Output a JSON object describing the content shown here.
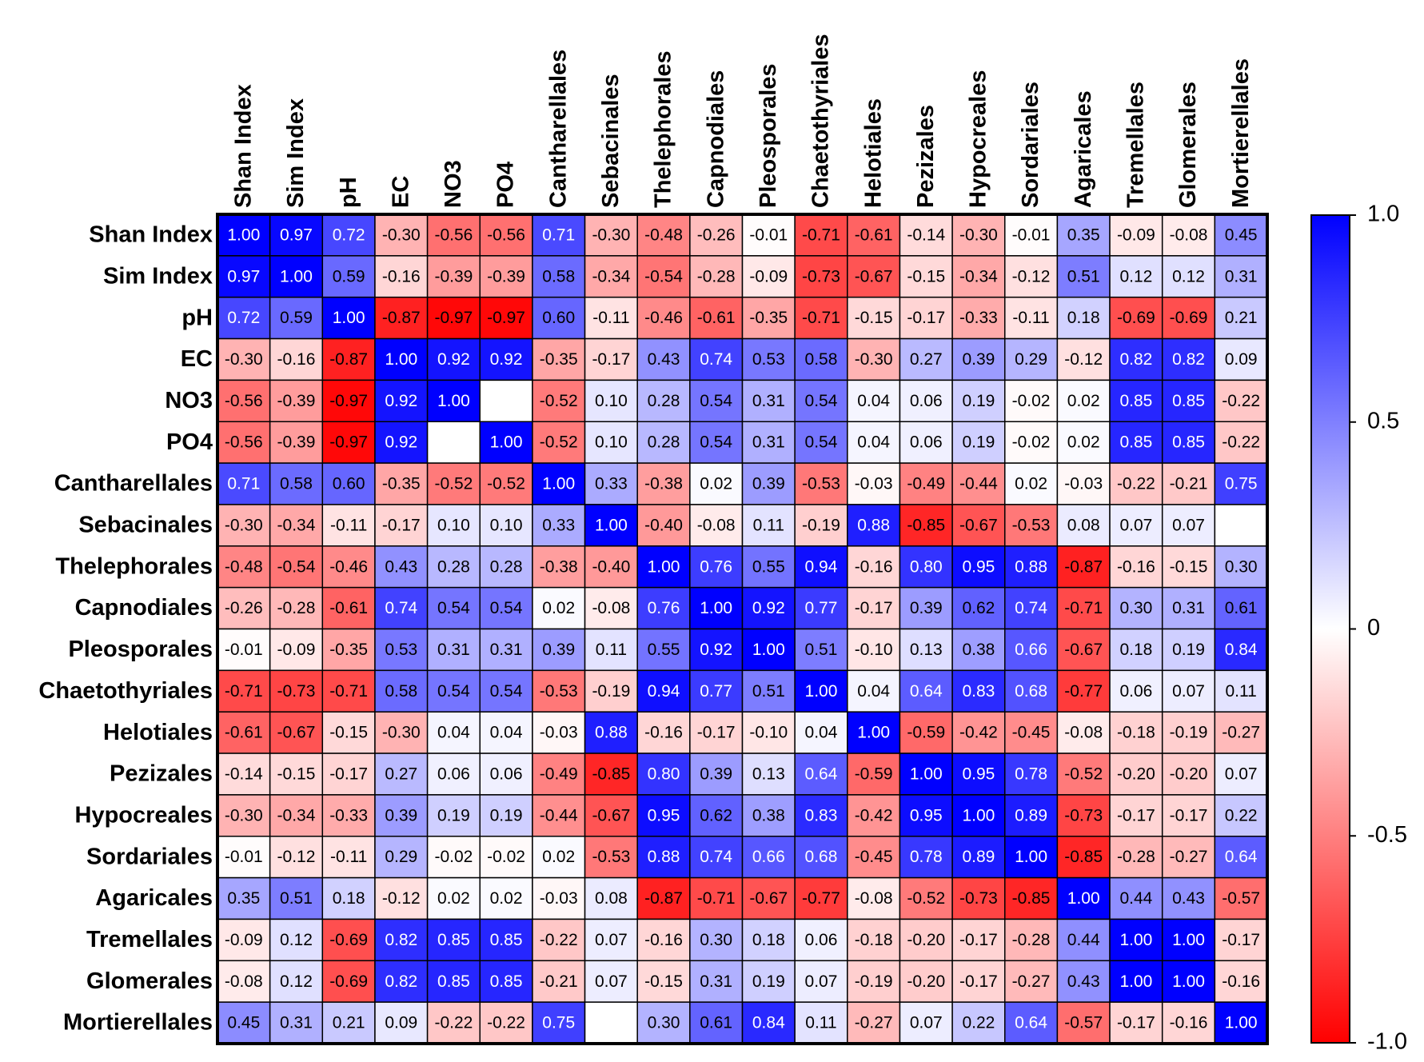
{
  "chart_data": {
    "type": "heatmap",
    "rows": [
      "Shan Index",
      "Sim Index",
      "pH",
      "EC",
      "NO3",
      "PO4",
      "Cantharellales",
      "Sebacinales",
      "Thelephorales",
      "Capnodiales",
      "Pleosporales",
      "Chaetothyriales",
      "Helotiales",
      "Pezizales",
      "Hypocreales",
      "Sordariales",
      "Agaricales",
      "Tremellales",
      "Glomerales",
      "Mortierellales"
    ],
    "columns": [
      "Shan Index",
      "Sim Index",
      "pH",
      "EC",
      "NO3",
      "PO4",
      "Cantharellales",
      "Sebacinales",
      "Thelephorales",
      "Capnodiales",
      "Pleosporales",
      "Chaetothyriales",
      "Helotiales",
      "Pezizales",
      "Hypocreales",
      "Sordariales",
      "Agaricales",
      "Tremellales",
      "Glomerales",
      "Mortierellales"
    ],
    "values": [
      [
        1.0,
        0.97,
        0.72,
        -0.3,
        -0.56,
        -0.56,
        0.71,
        -0.3,
        -0.48,
        -0.26,
        -0.01,
        -0.71,
        -0.61,
        -0.14,
        -0.3,
        -0.01,
        0.35,
        -0.09,
        -0.08,
        0.45
      ],
      [
        0.97,
        1.0,
        0.59,
        -0.16,
        -0.39,
        -0.39,
        0.58,
        -0.34,
        -0.54,
        -0.28,
        -0.09,
        -0.73,
        -0.67,
        -0.15,
        -0.34,
        -0.12,
        0.51,
        0.12,
        0.12,
        0.31
      ],
      [
        0.72,
        0.59,
        1.0,
        -0.87,
        -0.97,
        -0.97,
        0.6,
        -0.11,
        -0.46,
        -0.61,
        -0.35,
        -0.71,
        -0.15,
        -0.17,
        -0.33,
        -0.11,
        0.18,
        -0.69,
        -0.69,
        0.21
      ],
      [
        -0.3,
        -0.16,
        -0.87,
        1.0,
        0.92,
        0.92,
        -0.35,
        -0.17,
        0.43,
        0.74,
        0.53,
        0.58,
        -0.3,
        0.27,
        0.39,
        0.29,
        -0.12,
        0.82,
        0.82,
        0.09
      ],
      [
        -0.56,
        -0.39,
        -0.97,
        0.92,
        1.0,
        null,
        -0.52,
        0.1,
        0.28,
        0.54,
        0.31,
        0.54,
        0.04,
        0.06,
        0.19,
        -0.02,
        0.02,
        0.85,
        0.85,
        -0.22
      ],
      [
        -0.56,
        -0.39,
        -0.97,
        0.92,
        null,
        1.0,
        -0.52,
        0.1,
        0.28,
        0.54,
        0.31,
        0.54,
        0.04,
        0.06,
        0.19,
        -0.02,
        0.02,
        0.85,
        0.85,
        -0.22
      ],
      [
        0.71,
        0.58,
        0.6,
        -0.35,
        -0.52,
        -0.52,
        1.0,
        0.33,
        -0.38,
        0.02,
        0.39,
        -0.53,
        -0.03,
        -0.49,
        -0.44,
        0.02,
        -0.03,
        -0.22,
        -0.21,
        0.75
      ],
      [
        -0.3,
        -0.34,
        -0.11,
        -0.17,
        0.1,
        0.1,
        0.33,
        1.0,
        -0.4,
        -0.08,
        0.11,
        -0.19,
        0.88,
        -0.85,
        -0.67,
        -0.53,
        0.08,
        0.07,
        0.07,
        null
      ],
      [
        -0.48,
        -0.54,
        -0.46,
        0.43,
        0.28,
        0.28,
        -0.38,
        -0.4,
        1.0,
        0.76,
        0.55,
        0.94,
        -0.16,
        0.8,
        0.95,
        0.88,
        -0.87,
        -0.16,
        -0.15,
        0.3
      ],
      [
        -0.26,
        -0.28,
        -0.61,
        0.74,
        0.54,
        0.54,
        0.02,
        -0.08,
        0.76,
        1.0,
        0.92,
        0.77,
        -0.17,
        0.39,
        0.62,
        0.74,
        -0.71,
        0.3,
        0.31,
        0.61
      ],
      [
        -0.01,
        -0.09,
        -0.35,
        0.53,
        0.31,
        0.31,
        0.39,
        0.11,
        0.55,
        0.92,
        1.0,
        0.51,
        -0.1,
        0.13,
        0.38,
        0.66,
        -0.67,
        0.18,
        0.19,
        0.84
      ],
      [
        -0.71,
        -0.73,
        -0.71,
        0.58,
        0.54,
        0.54,
        -0.53,
        -0.19,
        0.94,
        0.77,
        0.51,
        1.0,
        0.04,
        0.64,
        0.83,
        0.68,
        -0.77,
        0.06,
        0.07,
        0.11
      ],
      [
        -0.61,
        -0.67,
        -0.15,
        -0.3,
        0.04,
        0.04,
        -0.03,
        0.88,
        -0.16,
        -0.17,
        -0.1,
        0.04,
        1.0,
        -0.59,
        -0.42,
        -0.45,
        -0.08,
        -0.18,
        -0.19,
        -0.27
      ],
      [
        -0.14,
        -0.15,
        -0.17,
        0.27,
        0.06,
        0.06,
        -0.49,
        -0.85,
        0.8,
        0.39,
        0.13,
        0.64,
        -0.59,
        1.0,
        0.95,
        0.78,
        -0.52,
        -0.2,
        -0.2,
        0.07
      ],
      [
        -0.3,
        -0.34,
        -0.33,
        0.39,
        0.19,
        0.19,
        -0.44,
        -0.67,
        0.95,
        0.62,
        0.38,
        0.83,
        -0.42,
        0.95,
        1.0,
        0.89,
        -0.73,
        -0.17,
        -0.17,
        0.22
      ],
      [
        -0.01,
        -0.12,
        -0.11,
        0.29,
        -0.02,
        -0.02,
        0.02,
        -0.53,
        0.88,
        0.74,
        0.66,
        0.68,
        -0.45,
        0.78,
        0.89,
        1.0,
        -0.85,
        -0.28,
        -0.27,
        0.64
      ],
      [
        0.35,
        0.51,
        0.18,
        -0.12,
        0.02,
        0.02,
        -0.03,
        0.08,
        -0.87,
        -0.71,
        -0.67,
        -0.77,
        -0.08,
        -0.52,
        -0.73,
        -0.85,
        1.0,
        0.44,
        0.43,
        -0.57
      ],
      [
        -0.09,
        0.12,
        -0.69,
        0.82,
        0.85,
        0.85,
        -0.22,
        0.07,
        -0.16,
        0.3,
        0.18,
        0.06,
        -0.18,
        -0.2,
        -0.17,
        -0.28,
        0.44,
        1.0,
        1.0,
        -0.17
      ],
      [
        -0.08,
        0.12,
        -0.69,
        0.82,
        0.85,
        0.85,
        -0.21,
        0.07,
        -0.15,
        0.31,
        0.19,
        0.07,
        -0.19,
        -0.2,
        -0.17,
        -0.27,
        0.43,
        1.0,
        1.0,
        -0.16
      ],
      [
        0.45,
        0.31,
        0.21,
        0.09,
        -0.22,
        -0.22,
        0.75,
        null,
        0.3,
        0.61,
        0.84,
        0.11,
        -0.27,
        0.07,
        0.22,
        0.64,
        -0.57,
        -0.17,
        -0.16,
        1.0
      ]
    ],
    "value_labels": [
      [
        "1.00",
        "0.97",
        "0.72",
        "-0.30",
        "-0.56",
        "-0.56",
        "0.71",
        "-0.30",
        "-0.48",
        "-0.26",
        "-0.01",
        "-0.71",
        "-0.61",
        "-0.14",
        "-0.30",
        "-0.01",
        "0.35",
        "-0.09",
        "-0.08",
        "0.45"
      ],
      [
        "0.97",
        "1.00",
        "0.59",
        "-0.16",
        "-0.39",
        "-0.39",
        "0.58",
        "-0.34",
        "-0.54",
        "-0.28",
        "-0.09",
        "-0.73",
        "-0.67",
        "-0.15",
        "-0.34",
        "-0.12",
        "0.51",
        "0.12",
        "0.12",
        "0.31"
      ],
      [
        "0.72",
        "0.59",
        "1.00",
        "-0.87",
        "-0.97",
        "-0.97",
        "0.60",
        "-0.11",
        "-0.46",
        "-0.61",
        "-0.35",
        "-0.71",
        "-0.15",
        "-0.17",
        "-0.33",
        "-0.11",
        "0.18",
        "-0.69",
        "-0.69",
        "0.21"
      ],
      [
        "-0.30",
        "-0.16",
        "-0.87",
        "1.00",
        "0.92",
        "0.92",
        "-0.35",
        "-0.17",
        "0.43",
        "0.74",
        "0.53",
        "0.58",
        "-0.30",
        "0.27",
        "0.39",
        "0.29",
        "-0.12",
        "0.82",
        "0.82",
        "0.09"
      ],
      [
        "-0.56",
        "-0.39",
        "-0.97",
        "0.92",
        "1.00",
        null,
        "-0.52",
        "0.10",
        "0.28",
        "0.54",
        "0.31",
        "0.54",
        "0.04",
        "0.06",
        "0.19",
        "-0.02",
        "0.02",
        "0.85",
        "0.85",
        "-0.22"
      ],
      [
        "-0.56",
        "-0.39",
        "-0.97",
        "0.92",
        null,
        "1.00",
        "-0.52",
        "0.10",
        "0.28",
        "0.54",
        "0.31",
        "0.54",
        "0.04",
        "0.06",
        "0.19",
        "-0.02",
        "0.02",
        "0.85",
        "0.85",
        "-0.22"
      ],
      [
        "0.71",
        "0.58",
        "0.60",
        "-0.35",
        "-0.52",
        "-0.52",
        "1.00",
        "0.33",
        "-0.38",
        "0.02",
        "0.39",
        "-0.53",
        "-0.03",
        "-0.49",
        "-0.44",
        "0.02",
        "-0.03",
        "-0.22",
        "-0.21",
        "0.75"
      ],
      [
        "-0.30",
        "-0.34",
        "-0.11",
        "-0.17",
        "0.10",
        "0.10",
        "0.33",
        "1.00",
        "-0.40",
        "-0.08",
        "0.11",
        "-0.19",
        "0.88",
        "-0.85",
        "-0.67",
        "-0.53",
        "0.08",
        "0.07",
        "0.07",
        null
      ],
      [
        "-0.48",
        "-0.54",
        "-0.46",
        "0.43",
        "0.28",
        "0.28",
        "-0.38",
        "-0.40",
        "1.00",
        "0.76",
        "0.55",
        "0.94",
        "-0.16",
        "0.80",
        "0.95",
        "0.88",
        "-0.87",
        "-0.16",
        "-0.15",
        "0.30"
      ],
      [
        "-0.26",
        "-0.28",
        "-0.61",
        "0.74",
        "0.54",
        "0.54",
        "0.02",
        "-0.08",
        "0.76",
        "1.00",
        "0.92",
        "0.77",
        "-0.17",
        "0.39",
        "0.62",
        "0.74",
        "-0.71",
        "0.30",
        "0.31",
        "0.61"
      ],
      [
        "-0.01",
        "-0.09",
        "-0.35",
        "0.53",
        "0.31",
        "0.31",
        "0.39",
        "0.11",
        "0.55",
        "0.92",
        "1.00",
        "0.51",
        "-0.10",
        "0.13",
        "0.38",
        "0.66",
        "-0.67",
        "0.18",
        "0.19",
        "0.84"
      ],
      [
        "-0.71",
        "-0.73",
        "-0.71",
        "0.58",
        "0.54",
        "0.54",
        "-0.53",
        "-0.19",
        "0.94",
        "0.77",
        "0.51",
        "1.00",
        "0.04",
        "0.64",
        "0.83",
        "0.68",
        "-0.77",
        "0.06",
        "0.07",
        "0.11"
      ],
      [
        "-0.61",
        "-0.67",
        "-0.15",
        "-0.30",
        "0.04",
        "0.04",
        "-0.03",
        "0.88",
        "-0.16",
        "-0.17",
        "-0.10",
        "0.04",
        "1.00",
        "-0.59",
        "-0.42",
        "-0.45",
        "-0.08",
        "-0.18",
        "-0.19",
        "-0.27"
      ],
      [
        "-0.14",
        "-0.15",
        "-0.17",
        "0.27",
        "0.06",
        "0.06",
        "-0.49",
        "-0.85",
        "0.80",
        "0.39",
        "0.13",
        "0.64",
        "-0.59",
        "1.00",
        "0.95",
        "0.78",
        "-0.52",
        "-0.20",
        "-0.20",
        "0.07"
      ],
      [
        "-0.30",
        "-0.34",
        "-0.33",
        "0.39",
        "0.19",
        "0.19",
        "-0.44",
        "-0.67",
        "0.95",
        "0.62",
        "0.38",
        "0.83",
        "-0.42",
        "0.95",
        "1.00",
        "0.89",
        "-0.73",
        "-0.17",
        "-0.17",
        "0.22"
      ],
      [
        "-0.01",
        "-0.12",
        "-0.11",
        "0.29",
        "-0.02",
        "-0.02",
        "0.02",
        "-0.53",
        "0.88",
        "0.74",
        "0.66",
        "0.68",
        "-0.45",
        "0.78",
        "0.89",
        "1.00",
        "-0.85",
        "-0.28",
        "-0.27",
        "0.64"
      ],
      [
        "0.35",
        "0.51",
        "0.18",
        "-0.12",
        "0.02",
        "0.02",
        "-0.03",
        "0.08",
        "-0.87",
        "-0.71",
        "-0.67",
        "-0.77",
        "-0.08",
        "-0.52",
        "-0.73",
        "-0.85",
        "1.00",
        "0.44",
        "0.43",
        "-0.57"
      ],
      [
        "-0.09",
        "0.12",
        "-0.69",
        "0.82",
        "0.85",
        "0.85",
        "-0.22",
        "0.07",
        "-0.16",
        "0.30",
        "0.18",
        "0.06",
        "-0.18",
        "-0.20",
        "-0.17",
        "-0.28",
        "0.44",
        "1.00",
        "1.00",
        "-0.17"
      ],
      [
        "-0.08",
        "0.12",
        "-0.69",
        "0.82",
        "0.85",
        "0.85",
        "-0.21",
        "0.07",
        "-0.15",
        "0.31",
        "0.19",
        "0.07",
        "-0.19",
        "-0.20",
        "-0.17",
        "-0.27",
        "0.43",
        "1.00",
        "1.00",
        "-0.16"
      ],
      [
        "0.45",
        "0.31",
        "0.21",
        "0.09",
        "-0.22",
        "-0.22",
        "0.75",
        null,
        "0.30",
        "0.61",
        "0.84",
        "0.11",
        "-0.27",
        "0.07",
        "0.22",
        "0.64",
        "-0.57",
        "-0.17",
        "-0.16",
        "1.00"
      ]
    ],
    "zlim": [
      -1,
      1
    ],
    "zticks": [
      {
        "value": 1,
        "label": "1.0"
      },
      0.5,
      0,
      -0.5,
      {
        "value": -1,
        "label": "-1.0"
      }
    ],
    "low_color": "#ff0000",
    "mid_color": "#ffffff",
    "high_color": "#0000ff"
  }
}
